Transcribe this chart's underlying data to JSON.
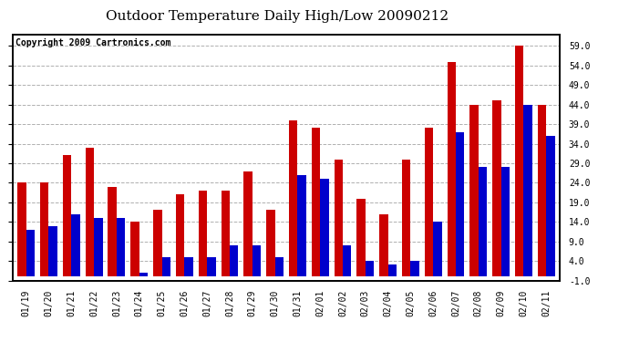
{
  "title": "Outdoor Temperature Daily High/Low 20090212",
  "copyright": "Copyright 2009 Cartronics.com",
  "dates": [
    "01/19",
    "01/20",
    "01/21",
    "01/22",
    "01/23",
    "01/24",
    "01/25",
    "01/26",
    "01/27",
    "01/28",
    "01/29",
    "01/30",
    "01/31",
    "02/01",
    "02/02",
    "02/03",
    "02/04",
    "02/05",
    "02/06",
    "02/07",
    "02/08",
    "02/09",
    "02/10",
    "02/11"
  ],
  "highs": [
    24,
    24,
    31,
    33,
    23,
    14,
    17,
    21,
    22,
    22,
    27,
    17,
    40,
    38,
    30,
    20,
    16,
    30,
    38,
    55,
    44,
    45,
    59,
    44
  ],
  "lows": [
    12,
    13,
    16,
    15,
    15,
    1,
    5,
    5,
    5,
    8,
    8,
    5,
    26,
    25,
    8,
    4,
    3,
    4,
    14,
    37,
    28,
    28,
    44,
    36
  ],
  "high_color": "#cc0000",
  "low_color": "#0000cc",
  "bg_color": "#ffffff",
  "grid_color": "#b0b0b0",
  "ylim_min": -1.0,
  "ylim_max": 62.0,
  "yticks": [
    -1.0,
    4.0,
    9.0,
    14.0,
    19.0,
    24.0,
    29.0,
    34.0,
    39.0,
    44.0,
    49.0,
    54.0,
    59.0
  ],
  "title_fontsize": 11,
  "copyright_fontsize": 7,
  "tick_fontsize": 7,
  "bar_width": 0.38
}
